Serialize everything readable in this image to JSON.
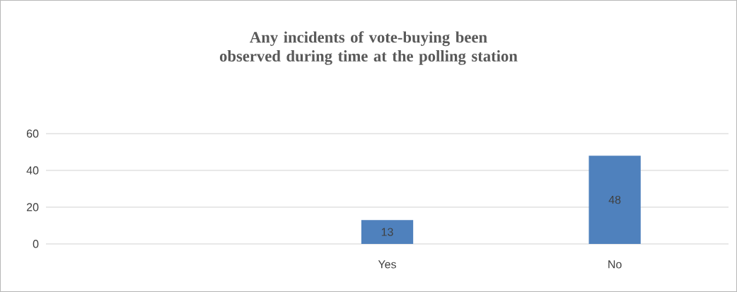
{
  "chart_data": {
    "type": "bar",
    "title": "Any incidents of vote-buying been observed during time at the polling station",
    "categories": [
      null,
      "Yes",
      "No"
    ],
    "values": [
      null,
      13,
      48
    ],
    "color": "#4f81bd",
    "ylim": [
      0,
      60
    ],
    "yticks": [
      0,
      20,
      40,
      60
    ],
    "grid": "y",
    "data_labels": true
  }
}
